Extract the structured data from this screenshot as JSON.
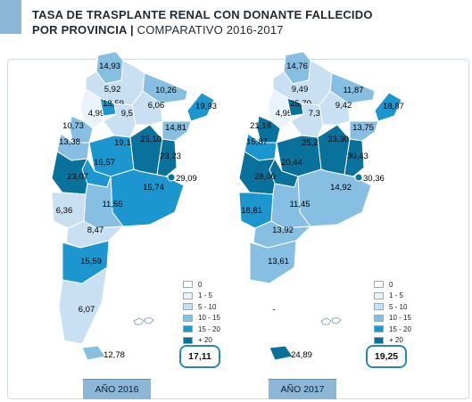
{
  "title": {
    "line1": "TASA DE TRASPLANTE RENAL CON DONANTE FALLECIDO",
    "line2_bold": "POR PROVINCIA",
    "line2_sep": " | ",
    "line2_rest": "COMPARATIVO 2016-2017"
  },
  "colors": {
    "0": "#ffffff",
    "1-5": "#eaf3fb",
    "5-10": "#c9e0f2",
    "10-15": "#87bfe3",
    "15-20": "#1b96ce",
    "+20": "#08719c",
    "accent": "#8cb7d6",
    "total_border": "#2a86b5"
  },
  "legend": [
    {
      "label": "0",
      "color": "#ffffff"
    },
    {
      "label": "1 - 5",
      "color": "#eaf3fb"
    },
    {
      "label": "5 - 10",
      "color": "#c9e0f2"
    },
    {
      "label": "10 - 15",
      "color": "#87bfe3"
    },
    {
      "label": "15 - 20",
      "color": "#1b96ce"
    },
    {
      "label": "+ 20",
      "color": "#08719c"
    }
  ],
  "maps": [
    {
      "year_label": "AÑO 2016",
      "total": "17,11",
      "values": {
        "jujuy": "14,93",
        "salta": "5,92",
        "formosa": "10,26",
        "catamarca": "4,99",
        "tucuman": "18,59",
        "santiago": "9,59",
        "chaco": "6,06",
        "misiones": "19,93",
        "larioja": "10,73",
        "corrientes": "14,81",
        "sanjuan": "13,38",
        "cordoba": "19,13",
        "santafe": "25,10",
        "sanluis": "16,57",
        "entrerios": "23,23",
        "mendoza": "23,07",
        "caba": "29,09",
        "buenosaires": "15,74",
        "lapampa": "11,55",
        "neuquen": "6,36",
        "rionegro": "8,47",
        "chubut": "15,59",
        "santacruz": "6,07",
        "tierradelfuego": "12,78"
      }
    },
    {
      "year_label": "AÑO 2017",
      "total": "19,25",
      "values": {
        "jujuy": "14,76",
        "salta": "9,49",
        "formosa": "11,87",
        "catamarca": "4,95",
        "tucuman": "25,70",
        "santiago": "7,38",
        "chaco": "9,42",
        "misiones": "18,87",
        "larioja": "21,16",
        "corrientes": "13,75",
        "sanjuan": "15,87",
        "cordoba": "25,24",
        "santafe": "33,30",
        "sanluis": "20,44",
        "entrerios": "30,43",
        "mendoza": "28,00",
        "caba": "30,36",
        "buenosaires": "14,92",
        "lapampa": "11,45",
        "neuquen": "18,81",
        "rionegro": "13,92",
        "chubut": "13,61",
        "santacruz": "-",
        "tierradelfuego": "24,89"
      }
    }
  ]
}
